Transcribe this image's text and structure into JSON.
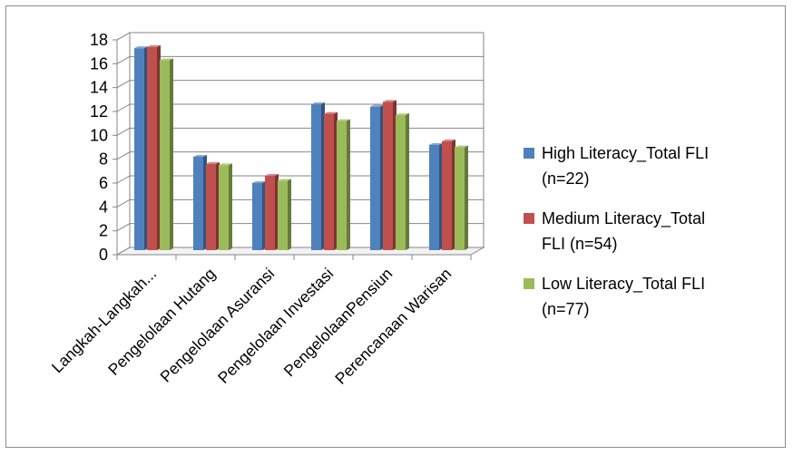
{
  "chart_data": {
    "type": "bar",
    "categories": [
      "Langkah-Langkah...",
      "Pengelolaan Hutang",
      "Pengelolaan Asuransi",
      "Pengelolaan Investasi",
      "PengelolaanPensiun",
      "Perencanaan Warisan"
    ],
    "series": [
      {
        "name": "High Literacy_Total FLI (n=22)",
        "legend_lines": [
          "High Literacy_Total FLI",
          "(n=22)"
        ],
        "color": "#4f81bd",
        "values": [
          17.0,
          7.9,
          5.7,
          12.3,
          12.1,
          8.9
        ]
      },
      {
        "name": "Medium Literacy_Total FLI (n=54)",
        "legend_lines": [
          "Medium Literacy_Total",
          "FLI (n=54)"
        ],
        "color": "#c0504d",
        "values": [
          17.1,
          7.3,
          6.3,
          11.5,
          12.5,
          9.2
        ]
      },
      {
        "name": "Low Literacy_Total FLI (n=77)",
        "legend_lines": [
          "Low Literacy_Total FLI",
          "(n=77)"
        ],
        "color": "#9bbb59",
        "values": [
          16.0,
          7.2,
          5.9,
          10.9,
          11.4,
          8.7
        ]
      }
    ],
    "y_ticks": [
      "0",
      "2",
      "4",
      "6",
      "8",
      "10",
      "12",
      "14",
      "16",
      "18"
    ],
    "ylim": [
      0,
      18
    ],
    "grid": true,
    "legend_position": "right",
    "title": "",
    "xlabel": "",
    "ylabel": ""
  }
}
